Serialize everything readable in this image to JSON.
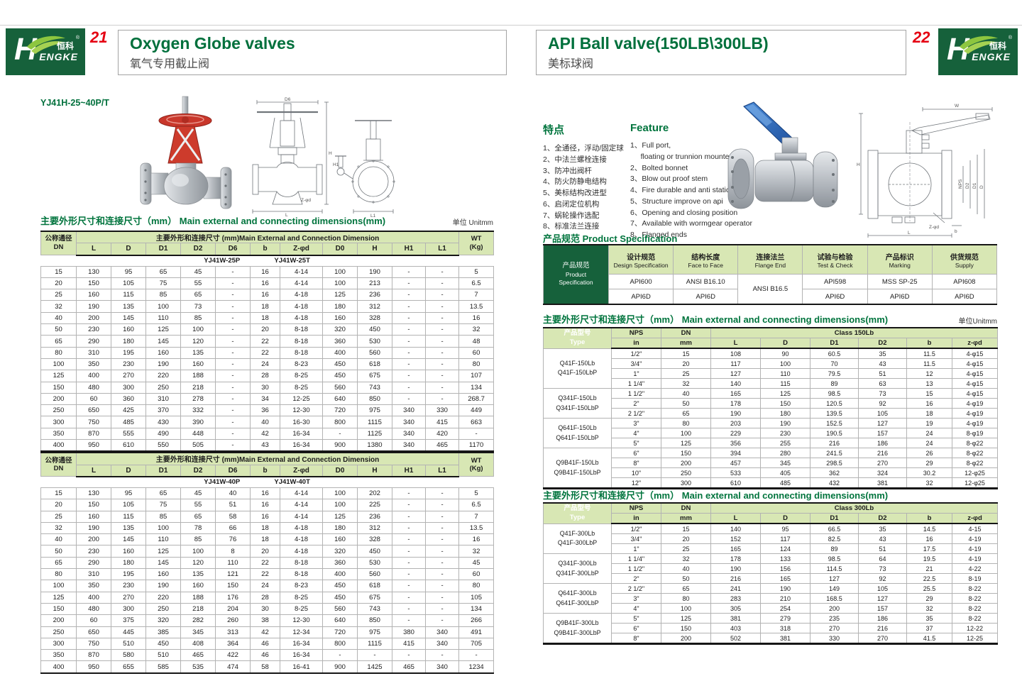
{
  "brand": {
    "cn": "恒科",
    "en": "ENGKE",
    "h": "H",
    "reg": "®"
  },
  "left": {
    "page_number": "21",
    "title_en": "Oxygen Globe valves",
    "title_zh": "氧气专用截止阀",
    "model": "YJ41H-25~40P/T",
    "section_zh": "主要外形尺寸和连接尺寸（mm）",
    "section_en": "Main external and connecting dimensions(mm)",
    "unit": "单位 Unitmm",
    "header": {
      "dn_zh": "公称通径",
      "dn_en": "DN",
      "span": "主要外形和连接尺寸 (mm)Main External and Connection Dimension",
      "wt1": "WT",
      "wt2": "(Kg)"
    },
    "header_cols": [
      "L",
      "D",
      "D1",
      "D2",
      "D6",
      "b",
      "Z-φd",
      "D0",
      "H",
      "H1",
      "L1"
    ],
    "table1": {
      "variant_p": "YJ41W-25P",
      "variant_t": "YJ41W-25T",
      "rows": [
        [
          "15",
          "130",
          "95",
          "65",
          "45",
          "-",
          "16",
          "4-14",
          "100",
          "190",
          "-",
          "-",
          "5"
        ],
        [
          "20",
          "150",
          "105",
          "75",
          "55",
          "-",
          "16",
          "4-14",
          "100",
          "213",
          "-",
          "-",
          "6.5"
        ],
        [
          "25",
          "160",
          "115",
          "85",
          "65",
          "-",
          "16",
          "4-18",
          "125",
          "236",
          "-",
          "-",
          "7"
        ],
        [
          "32",
          "190",
          "135",
          "100",
          "73",
          "-",
          "18",
          "4-18",
          "180",
          "312",
          "-",
          "-",
          "13.5"
        ],
        [
          "40",
          "200",
          "145",
          "110",
          "85",
          "-",
          "18",
          "4-18",
          "160",
          "328",
          "-",
          "-",
          "16"
        ],
        [
          "50",
          "230",
          "160",
          "125",
          "100",
          "-",
          "20",
          "8-18",
          "320",
          "450",
          "-",
          "-",
          "32"
        ],
        [
          "65",
          "290",
          "180",
          "145",
          "120",
          "-",
          "22",
          "8-18",
          "360",
          "530",
          "-",
          "-",
          "48"
        ],
        [
          "80",
          "310",
          "195",
          "160",
          "135",
          "-",
          "22",
          "8-18",
          "400",
          "560",
          "-",
          "-",
          "60"
        ],
        [
          "100",
          "350",
          "230",
          "190",
          "160",
          "-",
          "24",
          "8-23",
          "450",
          "618",
          "-",
          "-",
          "80"
        ],
        [
          "125",
          "400",
          "270",
          "220",
          "188",
          "-",
          "28",
          "8-25",
          "450",
          "675",
          "-",
          "-",
          "107"
        ],
        [
          "150",
          "480",
          "300",
          "250",
          "218",
          "-",
          "30",
          "8-25",
          "560",
          "743",
          "-",
          "-",
          "134"
        ],
        [
          "200",
          "60",
          "360",
          "310",
          "278",
          "-",
          "34",
          "12-25",
          "640",
          "850",
          "-",
          "-",
          "268.7"
        ],
        [
          "250",
          "650",
          "425",
          "370",
          "332",
          "-",
          "36",
          "12-30",
          "720",
          "975",
          "340",
          "330",
          "449"
        ],
        [
          "300",
          "750",
          "485",
          "430",
          "390",
          "-",
          "40",
          "16-30",
          "800",
          "1115",
          "340",
          "415",
          "663"
        ],
        [
          "350",
          "870",
          "555",
          "490",
          "448",
          "-",
          "42",
          "16-34",
          "-",
          "1125",
          "340",
          "420",
          "-"
        ],
        [
          "400",
          "950",
          "610",
          "550",
          "505",
          "-",
          "43",
          "16-34",
          "900",
          "1380",
          "340",
          "465",
          "1170"
        ]
      ]
    },
    "table2": {
      "variant_p": "YJ41W-40P",
      "variant_t": "YJ41W-40T",
      "rows": [
        [
          "15",
          "130",
          "95",
          "65",
          "45",
          "40",
          "16",
          "4-14",
          "100",
          "202",
          "-",
          "-",
          "5"
        ],
        [
          "20",
          "150",
          "105",
          "75",
          "55",
          "51",
          "16",
          "4-14",
          "100",
          "225",
          "-",
          "-",
          "6.5"
        ],
        [
          "25",
          "160",
          "115",
          "85",
          "65",
          "58",
          "16",
          "4-14",
          "125",
          "236",
          "-",
          "-",
          "7"
        ],
        [
          "32",
          "190",
          "135",
          "100",
          "78",
          "66",
          "18",
          "4-18",
          "180",
          "312",
          "-",
          "-",
          "13.5"
        ],
        [
          "40",
          "200",
          "145",
          "110",
          "85",
          "76",
          "18",
          "4-18",
          "160",
          "328",
          "-",
          "-",
          "16"
        ],
        [
          "50",
          "230",
          "160",
          "125",
          "100",
          "8",
          "20",
          "4-18",
          "320",
          "450",
          "-",
          "-",
          "32"
        ],
        [
          "65",
          "290",
          "180",
          "145",
          "120",
          "110",
          "22",
          "8-18",
          "360",
          "530",
          "-",
          "-",
          "45"
        ],
        [
          "80",
          "310",
          "195",
          "160",
          "135",
          "121",
          "22",
          "8-18",
          "400",
          "560",
          "-",
          "-",
          "60"
        ],
        [
          "100",
          "350",
          "230",
          "190",
          "160",
          "150",
          "24",
          "8-23",
          "450",
          "618",
          "-",
          "-",
          "80"
        ],
        [
          "125",
          "400",
          "270",
          "220",
          "188",
          "176",
          "28",
          "8-25",
          "450",
          "675",
          "-",
          "-",
          "105"
        ],
        [
          "150",
          "480",
          "300",
          "250",
          "218",
          "204",
          "30",
          "8-25",
          "560",
          "743",
          "-",
          "-",
          "134"
        ],
        [
          "200",
          "60",
          "375",
          "320",
          "282",
          "260",
          "38",
          "12-30",
          "640",
          "850",
          "-",
          "-",
          "266"
        ],
        [
          "250",
          "650",
          "445",
          "385",
          "345",
          "313",
          "42",
          "12-34",
          "720",
          "975",
          "380",
          "340",
          "491"
        ],
        [
          "300",
          "750",
          "510",
          "450",
          "408",
          "364",
          "46",
          "16-34",
          "800",
          "1115",
          "415",
          "340",
          "705"
        ],
        [
          "350",
          "870",
          "580",
          "510",
          "465",
          "422",
          "46",
          "16-34",
          "-",
          "-",
          "-",
          "-",
          "-"
        ],
        [
          "400",
          "950",
          "655",
          "585",
          "535",
          "474",
          "58",
          "16-41",
          "900",
          "1425",
          "465",
          "340",
          "1234"
        ]
      ]
    },
    "drawing1_labels": {
      "top": "D6",
      "right": "H",
      "bottom": "L",
      "flange": "Z-φd"
    },
    "drawing2_labels": {
      "left": "H1",
      "bottom": "L1"
    }
  },
  "right": {
    "page_number": "22",
    "title_en": "API Ball valve(150LB\\300LB)",
    "title_zh": "美标球阀",
    "features_zh_title": "特点",
    "features_en_title": "Feature",
    "features_zh": [
      "1、全通径，浮动/固定球",
      "2、中法兰螺栓连接",
      "3、防冲出阀杆",
      "4、防火防静电结构",
      "5、美标结构改进型",
      "6、启闭定位机构",
      "7、蜗轮操作选配",
      "8、标准法兰连接"
    ],
    "features_en": [
      "1、Full port,\n     floating or trunnion mounte type",
      "2、Bolted bonnet",
      "3、Blow out proof stem",
      "4、Fire durable and anti static safety",
      "5、Structure improve on api",
      "6、Opening and closing position",
      "7、Available with wormgear operator",
      "8、Flanged ends"
    ],
    "spec_title_zh": "产品规范",
    "spec_title_en": "Product Specification",
    "spec": {
      "corner_zh": "产品规范",
      "corner_en": "Product Specification",
      "headers": [
        {
          "zh": "设计规范",
          "en": "Design Specification"
        },
        {
          "zh": "结构长度",
          "en": "Face to Face"
        },
        {
          "zh": "连接法兰",
          "en": "Flange End"
        },
        {
          "zh": "试验与检验",
          "en": "Test & Check"
        },
        {
          "zh": "产品标识",
          "en": "Marking"
        },
        {
          "zh": "供货规范",
          "en": "Supply"
        }
      ],
      "row1": [
        "API600",
        "ANSI B16.10",
        {
          "v": "ANSI B16.5",
          "rowspan": 2
        },
        "API598",
        "MSS SP-25",
        "API608"
      ],
      "row2": [
        "API6D",
        "API6D",
        null,
        "API6D",
        "API6D",
        "API6D"
      ]
    },
    "section_zh": "主要外形尺寸和连接尺寸（mm）",
    "section_en": "Main external and connecting dimensions(mm)",
    "unit": "单位Unitmm",
    "header": {
      "type_zh": "产品型号",
      "type_en": "Type",
      "nps": "NPS",
      "dn": "DN",
      "class150": "Class 150Lb",
      "class300": "Class 300Lb"
    },
    "header_cols": [
      "in",
      "mm",
      "L",
      "D",
      "D1",
      "D2",
      "b",
      "z-φd"
    ],
    "table150": {
      "groups": [
        {
          "label": "Q41F-150Lb\nQ41F-150LbP",
          "start": 0,
          "span": 4
        },
        {
          "label": "Q341F-150Lb\nQ341F-150LbP",
          "start": 4,
          "span": 3
        },
        {
          "label": "Q641F-150Lb\nQ641F-150LbP",
          "start": 7,
          "span": 3
        },
        {
          "label": "Q9B41F-150Lb\nQ9B41F-150LbP",
          "start": 10,
          "span": 4
        }
      ],
      "rows": [
        [
          "1/2\"",
          "15",
          "108",
          "90",
          "60.5",
          "35",
          "11.5",
          "4-φ15"
        ],
        [
          "3/4\"",
          "20",
          "117",
          "100",
          "70",
          "43",
          "11.5",
          "4-φ15"
        ],
        [
          "1\"",
          "25",
          "127",
          "110",
          "79.5",
          "51",
          "12",
          "4-φ15"
        ],
        [
          "1 1/4\"",
          "32",
          "140",
          "115",
          "89",
          "63",
          "13",
          "4-φ15"
        ],
        [
          "1 1/2\"",
          "40",
          "165",
          "125",
          "98.5",
          "73",
          "15",
          "4-φ15"
        ],
        [
          "2\"",
          "50",
          "178",
          "150",
          "120.5",
          "92",
          "16",
          "4-φ19"
        ],
        [
          "2 1/2\"",
          "65",
          "190",
          "180",
          "139.5",
          "105",
          "18",
          "4-φ19"
        ],
        [
          "3\"",
          "80",
          "203",
          "190",
          "152.5",
          "127",
          "19",
          "4-φ19"
        ],
        [
          "4\"",
          "100",
          "229",
          "230",
          "190.5",
          "157",
          "24",
          "8-φ19"
        ],
        [
          "5\"",
          "125",
          "356",
          "255",
          "216",
          "186",
          "24",
          "8-φ22"
        ],
        [
          "6\"",
          "150",
          "394",
          "280",
          "241.5",
          "216",
          "26",
          "8-φ22"
        ],
        [
          "8\"",
          "200",
          "457",
          "345",
          "298.5",
          "270",
          "29",
          "8-φ22"
        ],
        [
          "10\"",
          "250",
          "533",
          "405",
          "362",
          "324",
          "30.2",
          "12-φ25"
        ],
        [
          "12\"",
          "300",
          "610",
          "485",
          "432",
          "381",
          "32",
          "12-φ25"
        ]
      ]
    },
    "table300": {
      "groups": [
        {
          "label": "Q41F-300Lb\nQ41F-300LbP",
          "start": 0,
          "span": 3
        },
        {
          "label": "Q341F-300Lb\nQ341F-300LbP",
          "start": 3,
          "span": 3
        },
        {
          "label": "Q641F-300Lb\nQ641F-300LbP",
          "start": 6,
          "span": 3
        },
        {
          "label": "Q9B41F-300Lb\nQ9B41F-300LbP",
          "start": 9,
          "span": 3
        }
      ],
      "rows": [
        [
          "1/2\"",
          "15",
          "140",
          "95",
          "66.5",
          "35",
          "14.5",
          "4-15"
        ],
        [
          "3/4\"",
          "20",
          "152",
          "117",
          "82.5",
          "43",
          "16",
          "4-19"
        ],
        [
          "1\"",
          "25",
          "165",
          "124",
          "89",
          "51",
          "17.5",
          "4-19"
        ],
        [
          "1 1/4\"",
          "32",
          "178",
          "133",
          "98.5",
          "64",
          "19.5",
          "4-19"
        ],
        [
          "1 1/2\"",
          "40",
          "190",
          "156",
          "114.5",
          "73",
          "21",
          "4-22"
        ],
        [
          "2\"",
          "50",
          "216",
          "165",
          "127",
          "92",
          "22.5",
          "8-19"
        ],
        [
          "2 1/2\"",
          "65",
          "241",
          "190",
          "149",
          "105",
          "25.5",
          "8-22"
        ],
        [
          "3\"",
          "80",
          "283",
          "210",
          "168.5",
          "127",
          "29",
          "8-22"
        ],
        [
          "4\"",
          "100",
          "305",
          "254",
          "200",
          "157",
          "32",
          "8-22"
        ],
        [
          "5\"",
          "125",
          "381",
          "279",
          "235",
          "186",
          "35",
          "8-22"
        ],
        [
          "6\"",
          "150",
          "403",
          "318",
          "270",
          "216",
          "37",
          "12-22"
        ],
        [
          "8\"",
          "200",
          "502",
          "381",
          "330",
          "270",
          "41.5",
          "12-25"
        ]
      ]
    },
    "drawing_labels": {
      "w": "W",
      "h": "H",
      "nps": "NPS",
      "d2": "D2",
      "d1": "D1",
      "d": "D",
      "z": "Z-φd",
      "b": "b",
      "l": "L"
    }
  },
  "colors": {
    "dark_green": "#16613b",
    "light_green": "#d8e7b4",
    "title_green": "#00703c",
    "page_red": "#e50012"
  }
}
